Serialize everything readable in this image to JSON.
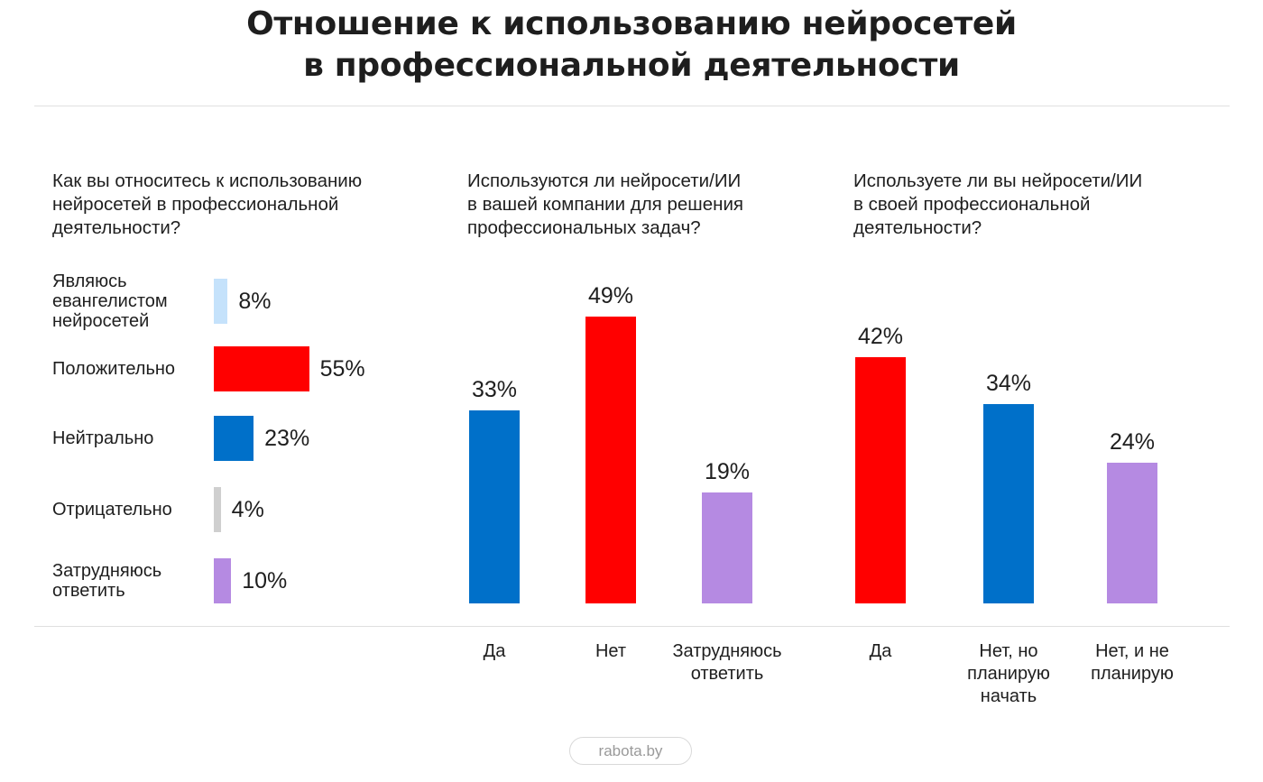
{
  "title": {
    "line1": "Отношение к использованию нейросетей",
    "line2": "в профессиональной деятельности"
  },
  "footer": {
    "source": "rabota.by"
  },
  "chart_data": [
    {
      "type": "bar",
      "orientation": "horizontal",
      "title_lines": [
        "Как вы относитесь к использованию",
        "нейросетей в профессиональной",
        "деятельности?"
      ],
      "categories": [
        [
          "Являюсь",
          "евангелистом",
          "нейросетей"
        ],
        [
          "Положительно"
        ],
        [
          "Нейтрально"
        ],
        [
          "Отрицательно"
        ],
        [
          "Затрудняюсь",
          "ответить"
        ]
      ],
      "values": [
        8,
        55,
        23,
        4,
        10
      ],
      "value_labels": [
        "8%",
        "55%",
        "23%",
        "4%",
        "10%"
      ],
      "colors": [
        "#c5e2fb",
        "#ff0000",
        "#0070c9",
        "#cfcfcf",
        "#b58ae2"
      ],
      "xlim": [
        0,
        100
      ]
    },
    {
      "type": "bar",
      "orientation": "vertical",
      "title_lines": [
        "Используются ли нейросети/ИИ",
        "в вашей компании для решения",
        "профессиональных задач?"
      ],
      "categories": [
        [
          "Да"
        ],
        [
          "Нет"
        ],
        [
          "Затрудняюсь",
          "ответить"
        ]
      ],
      "values": [
        33,
        49,
        19
      ],
      "value_labels": [
        "33%",
        "49%",
        "19%"
      ],
      "colors": [
        "#0070c9",
        "#ff0000",
        "#b58ae2"
      ],
      "ylim": [
        0,
        100
      ]
    },
    {
      "type": "bar",
      "orientation": "vertical",
      "title_lines": [
        "Используете ли вы нейросети/ИИ",
        "в своей профессиональной",
        "деятельности?"
      ],
      "categories": [
        [
          "Да"
        ],
        [
          "Нет, но",
          "планирую",
          "начать"
        ],
        [
          "Нет, и не",
          "планирую"
        ]
      ],
      "values": [
        42,
        34,
        24
      ],
      "value_labels": [
        "42%",
        "34%",
        "24%"
      ],
      "colors": [
        "#ff0000",
        "#0070c9",
        "#b58ae2"
      ],
      "ylim": [
        0,
        100
      ]
    }
  ]
}
